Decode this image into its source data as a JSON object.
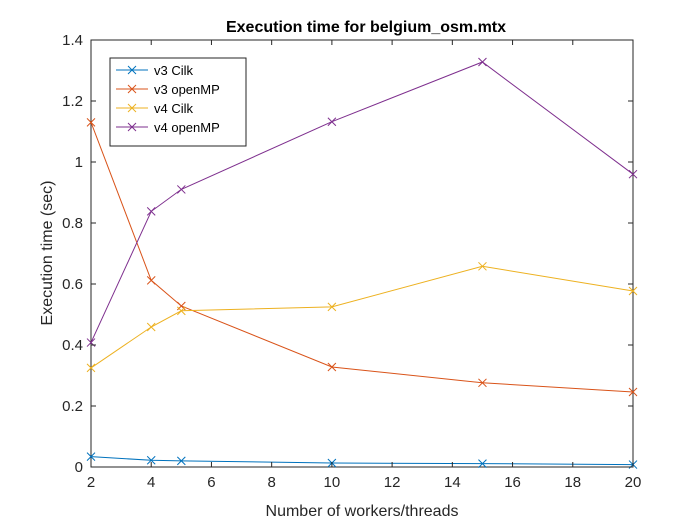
{
  "chart_data": {
    "type": "line",
    "title": "Execution time for belgium_osm.mtx",
    "xlabel": "Number of workers/threads",
    "ylabel": "Execution time (sec)",
    "xlim": [
      2,
      20
    ],
    "ylim": [
      0,
      1.4
    ],
    "xticks": [
      2,
      4,
      6,
      8,
      10,
      12,
      14,
      16,
      18,
      20
    ],
    "yticks": [
      0,
      0.2,
      0.4,
      0.6,
      0.8,
      1,
      1.2,
      1.4
    ],
    "ytick_labels": [
      "0",
      "0.2",
      "0.4",
      "0.6",
      "0.8",
      "1",
      "1.2",
      "1.4"
    ],
    "grid": false,
    "legend_position": "top-left",
    "marker": "x",
    "x": [
      2,
      4,
      5,
      10,
      15,
      20
    ],
    "series": [
      {
        "name": "v3 Cilk",
        "color": "#0072BD",
        "values": [
          0.034,
          0.022,
          0.02,
          0.013,
          0.011,
          0.008
        ]
      },
      {
        "name": "v3 openMP",
        "color": "#D95319",
        "values": [
          1.13,
          0.612,
          0.528,
          0.328,
          0.276,
          0.246
        ]
      },
      {
        "name": "v4 Cilk",
        "color": "#EDB120",
        "values": [
          0.325,
          0.459,
          0.512,
          0.525,
          0.658,
          0.577
        ]
      },
      {
        "name": "v4 openMP",
        "color": "#7E2F8E",
        "values": [
          0.408,
          0.838,
          0.91,
          1.132,
          1.328,
          0.96
        ]
      }
    ]
  }
}
